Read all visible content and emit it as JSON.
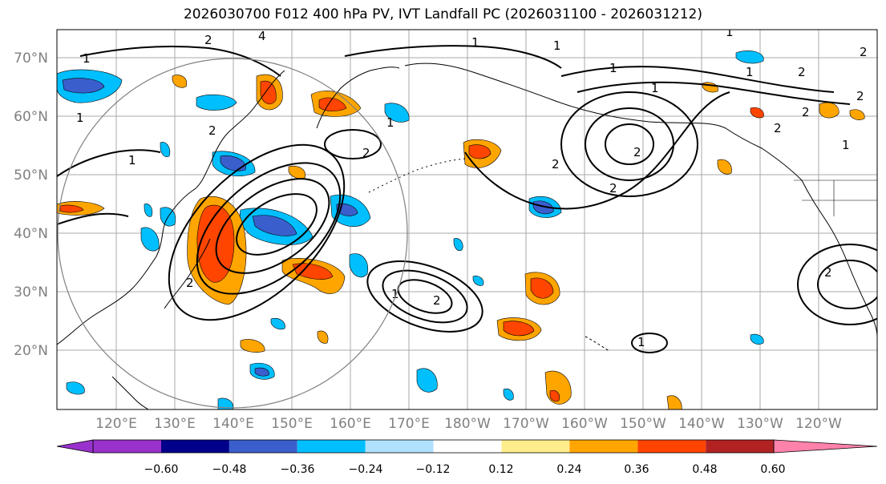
{
  "title": "2026030700 F012 400 hPa PV, IVT Landfall PC (2026031100 - 2026031212)",
  "map": {
    "lat_labels": [
      "70°N",
      "60°N",
      "50°N",
      "40°N",
      "30°N",
      "20°N"
    ],
    "lon_labels": [
      "120°E",
      "130°E",
      "140°E",
      "150°E",
      "160°E",
      "170°E",
      "180°W",
      "170°W",
      "160°W",
      "150°W",
      "140°W",
      "130°W",
      "120°W"
    ],
    "contour_labels": [
      "1",
      "1",
      "2",
      "4",
      "1",
      "1",
      "2",
      "2",
      "1",
      "2",
      "2",
      "2",
      "2",
      "1",
      "1",
      "2",
      "2",
      "1",
      "1",
      "2",
      "2",
      "2",
      "1",
      "1",
      "1",
      "2",
      "2",
      "1"
    ]
  },
  "colorbar": {
    "ticks": [
      "−0.60",
      "−0.48",
      "−0.36",
      "−0.24",
      "−0.12",
      "0.12",
      "0.24",
      "0.36",
      "0.48",
      "0.60"
    ],
    "colors": [
      "#9932cc",
      "#00008b",
      "#3a5fcd",
      "#00bfff",
      "#b0e2ff",
      "#ffffff",
      "#ffec8b",
      "#ffa500",
      "#ff4500",
      "#b22222",
      "#ff82ab"
    ]
  },
  "colors": {
    "neg_strong": "#3a5fcd",
    "neg_mid": "#00bfff",
    "neg_weak": "#b0e2ff",
    "pos_weak": "#ffec8b",
    "pos_mid": "#ffa500",
    "pos_strong": "#ff4500",
    "grid": "#a9a9a9",
    "circle": "#808080"
  }
}
